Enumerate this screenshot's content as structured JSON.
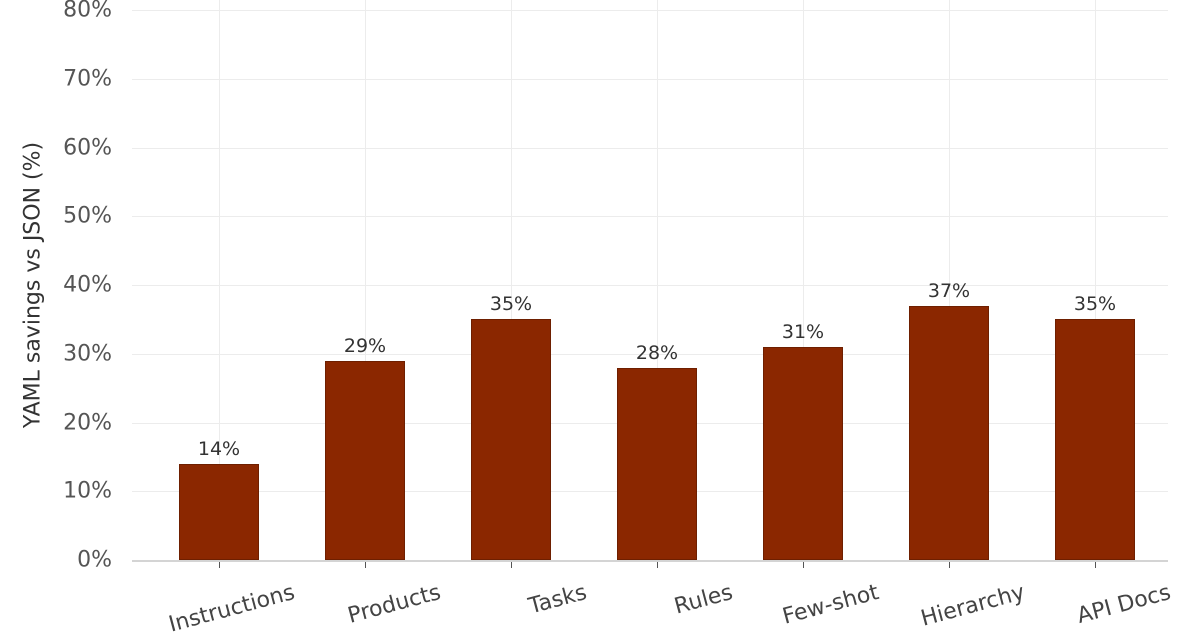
{
  "chart_data": {
    "type": "bar",
    "title": "",
    "xlabel": "",
    "ylabel": "YAML savings vs JSON (%)",
    "categories": [
      "Instructions",
      "Products",
      "Tasks",
      "Rules",
      "Few-shot",
      "Hierarchy",
      "API Docs"
    ],
    "values": [
      14,
      29,
      35,
      28,
      31,
      37,
      35
    ],
    "value_labels": [
      "14%",
      "29%",
      "35%",
      "28%",
      "31%",
      "37%",
      "35%"
    ],
    "ylim": [
      0,
      80
    ],
    "yticks": [
      "0%",
      "10%",
      "20%",
      "30%",
      "40%",
      "50%",
      "60%",
      "70%",
      "80%"
    ],
    "grid": true,
    "legend": null,
    "bar_color": "#8b2700"
  }
}
